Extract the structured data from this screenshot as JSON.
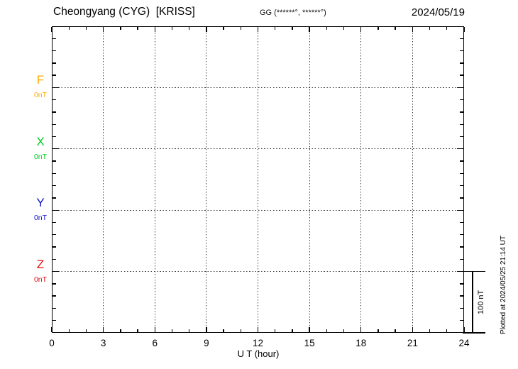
{
  "header": {
    "station_title": "Cheongyang (CYG)  [KRISS]",
    "gg_label": "GG (******°, ******°)",
    "date": "2024/05/19"
  },
  "channels": [
    {
      "name": "F",
      "unit_label": "0nT",
      "color": "#ffaa00",
      "baseline_index": 5
    },
    {
      "name": "X",
      "unit_label": "0nT",
      "color": "#00cc22",
      "baseline_index": 10
    },
    {
      "name": "Y",
      "unit_label": "0nT",
      "color": "#1111cc",
      "baseline_index": 15
    },
    {
      "name": "Z",
      "unit_label": "0nT",
      "color": "#dd1111",
      "baseline_index": 20
    }
  ],
  "x_axis": {
    "label": "U T (hour)",
    "tick_labels": [
      "0",
      "3",
      "6",
      "9",
      "12",
      "15",
      "18",
      "21",
      "24"
    ],
    "major_step_hours": 3,
    "minor_step_hours": 1,
    "hours_min": 0,
    "hours_max": 24
  },
  "scale_bar": {
    "label": "100 nT"
  },
  "footer_note": "Plotted at 2024/05/25 21:14 UT",
  "chart_data": {
    "type": "line",
    "title": "Cheongyang (CYG)  [KRISS]",
    "subtitle": "GG (******°, ******°)",
    "date": "2024/05/19",
    "xlabel": "U T (hour)",
    "x_range": [
      0,
      24
    ],
    "x_major_ticks": [
      0,
      3,
      6,
      9,
      12,
      15,
      18,
      21,
      24
    ],
    "x_minor_step": 1,
    "grid": "dotted vertical lines every 3 hours; dotted horizontal baseline at each channel zero level",
    "legend_position": "left margin (channel letters with 0nT baselines)",
    "y_scale": {
      "scale_bar_label": "100 nT",
      "nT_per_minor_division": 20,
      "minor_divisions": 25
    },
    "series": [
      {
        "name": "F",
        "baseline_nT": 0,
        "baseline_label": "0nT",
        "color": "#ffaa00",
        "values": []
      },
      {
        "name": "X",
        "baseline_nT": 0,
        "baseline_label": "0nT",
        "color": "#00cc22",
        "values": []
      },
      {
        "name": "Y",
        "baseline_nT": 0,
        "baseline_label": "0nT",
        "color": "#1111cc",
        "values": []
      },
      {
        "name": "Z",
        "baseline_nT": 0,
        "baseline_label": "0nT",
        "color": "#dd1111",
        "values": []
      }
    ],
    "note": "No data traces are drawn in the plot area (empty magnetogram); only baselines are shown.",
    "plotted_at": "Plotted at 2024/05/25 21:14 UT"
  }
}
